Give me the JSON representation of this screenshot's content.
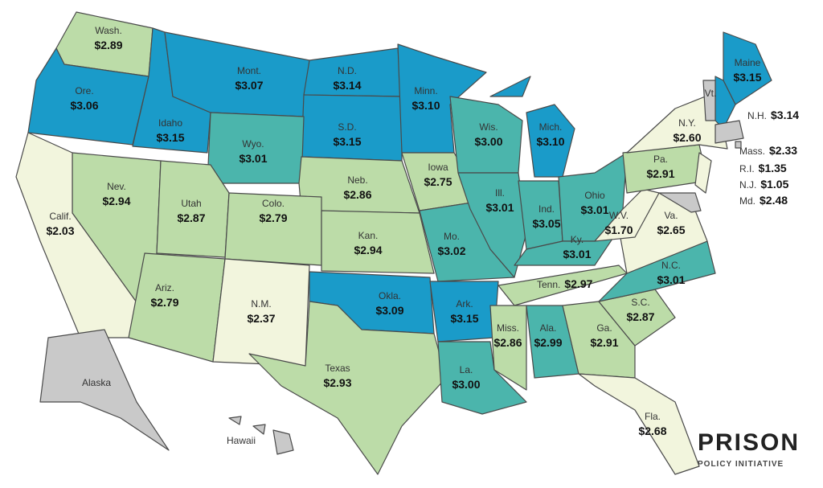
{
  "states": [
    {
      "name": "Wash.",
      "price": "$2.89",
      "color": "#bcdca8"
    },
    {
      "name": "Ore.",
      "price": "$3.06",
      "color": "#1a9bc9"
    },
    {
      "name": "Idaho",
      "price": "$3.15",
      "color": "#1a9bc9"
    },
    {
      "name": "Mont.",
      "price": "$3.07",
      "color": "#1a9bc9"
    },
    {
      "name": "N.D.",
      "price": "$3.14",
      "color": "#1a9bc9"
    },
    {
      "name": "S.D.",
      "price": "$3.15",
      "color": "#1a9bc9"
    },
    {
      "name": "Minn.",
      "price": "$3.10",
      "color": "#1a9bc9"
    },
    {
      "name": "Wyo.",
      "price": "$3.01",
      "color": "#4bb5ac"
    },
    {
      "name": "Neb.",
      "price": "$2.86",
      "color": "#bcdca8"
    },
    {
      "name": "Iowa",
      "price": "$2.75",
      "color": "#bcdca8"
    },
    {
      "name": "Nev.",
      "price": "$2.94",
      "color": "#bcdca8"
    },
    {
      "name": "Calif.",
      "price": "$2.03",
      "color": "#f2f5dd"
    },
    {
      "name": "Utah",
      "price": "$2.87",
      "color": "#bcdca8"
    },
    {
      "name": "Colo.",
      "price": "$2.79",
      "color": "#bcdca8"
    },
    {
      "name": "Kan.",
      "price": "$2.94",
      "color": "#bcdca8"
    },
    {
      "name": "Ariz.",
      "price": "$2.79",
      "color": "#bcdca8"
    },
    {
      "name": "N.M.",
      "price": "$2.37",
      "color": "#f2f5dd"
    },
    {
      "name": "Okla.",
      "price": "$3.09",
      "color": "#1a9bc9"
    },
    {
      "name": "Texas",
      "price": "$2.93",
      "color": "#bcdca8"
    },
    {
      "name": "Mo.",
      "price": "$3.02",
      "color": "#4bb5ac"
    },
    {
      "name": "Ark.",
      "price": "$3.15",
      "color": "#1a9bc9"
    },
    {
      "name": "La.",
      "price": "$3.00",
      "color": "#4bb5ac"
    },
    {
      "name": "Wis.",
      "price": "$3.00",
      "color": "#4bb5ac"
    },
    {
      "name": "Mich.",
      "price": "$3.10",
      "color": "#1a9bc9"
    },
    {
      "name": "Ill.",
      "price": "$3.01",
      "color": "#4bb5ac"
    },
    {
      "name": "Ind.",
      "price": "$3.05",
      "color": "#4bb5ac"
    },
    {
      "name": "Ohio",
      "price": "$3.01",
      "color": "#4bb5ac"
    },
    {
      "name": "Ky.",
      "price": "$3.01",
      "color": "#4bb5ac"
    },
    {
      "name": "Tenn.",
      "price": "$2.97",
      "color": "#bcdca8"
    },
    {
      "name": "Miss.",
      "price": "$2.86",
      "color": "#bcdca8"
    },
    {
      "name": "Ala.",
      "price": "$2.99",
      "color": "#4bb5ac"
    },
    {
      "name": "Ga.",
      "price": "$2.91",
      "color": "#bcdca8"
    },
    {
      "name": "S.C.",
      "price": "$2.87",
      "color": "#bcdca8"
    },
    {
      "name": "N.C.",
      "price": "$3.01",
      "color": "#4bb5ac"
    },
    {
      "name": "Va.",
      "price": "$2.65",
      "color": "#f2f5dd"
    },
    {
      "name": "W.V.",
      "price": "$1.70",
      "color": "#f2f5dd"
    },
    {
      "name": "Pa.",
      "price": "$2.91",
      "color": "#bcdca8"
    },
    {
      "name": "N.Y.",
      "price": "$2.60",
      "color": "#f2f5dd"
    },
    {
      "name": "Fla.",
      "price": "$2.68",
      "color": "#f2f5dd"
    },
    {
      "name": "Maine",
      "price": "$3.15",
      "color": "#1a9bc9"
    },
    {
      "name": "N.H.",
      "price": "$3.14",
      "color": "#1a9bc9"
    },
    {
      "name": "Vt.",
      "color": "#c9c9c9"
    },
    {
      "name": "Mass.",
      "price": "$2.33",
      "color": "#c9c9c9"
    },
    {
      "name": "R.I.",
      "price": "$1.35",
      "color": "#c9c9c9"
    },
    {
      "name": "N.J.",
      "price": "$1.05",
      "color": "#f2f5dd"
    },
    {
      "name": "Md.",
      "price": "$2.48",
      "color": "#c9c9c9"
    },
    {
      "name": "Alaska",
      "color": "#c9c9c9"
    },
    {
      "name": "Hawaii",
      "color": "#c9c9c9"
    }
  ],
  "logo": {
    "title": "PRISON",
    "subtitle": "POLICY INITIATIVE"
  }
}
